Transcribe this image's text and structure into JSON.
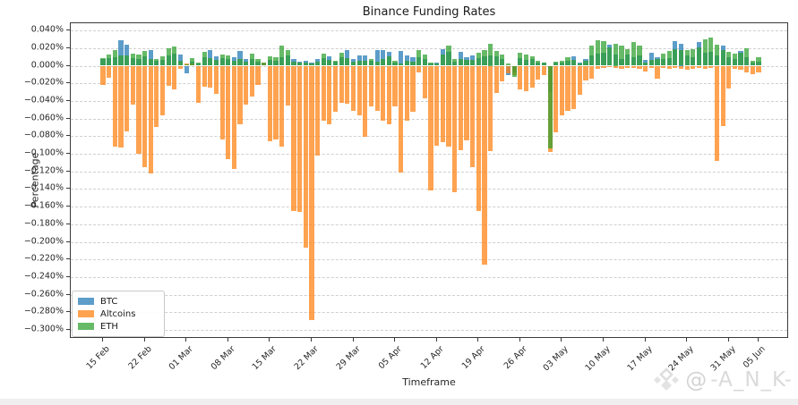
{
  "chart_data": {
    "type": "bar",
    "title": "Binance Funding Rates",
    "xlabel": "Timeframe",
    "ylabel": "Percentage",
    "ylim": [
      -0.3,
      0.04
    ],
    "ytick_step": 0.02,
    "grid": "dashed horizontal",
    "legend_position": "lower left",
    "bar_style": "overlapping, semi-transparent, per-day",
    "xtick_labels": [
      "15 Feb",
      "22 Feb",
      "01 Mar",
      "08 Mar",
      "15 Mar",
      "22 Mar",
      "29 Mar",
      "05 Apr",
      "12 Apr",
      "19 Apr",
      "26 Apr",
      "03 May",
      "10 May",
      "17 May",
      "24 May",
      "31 May",
      "05 Jun"
    ],
    "xtick_day_index": [
      0,
      7,
      14,
      21,
      28,
      35,
      42,
      49,
      56,
      63,
      70,
      77,
      84,
      91,
      98,
      105,
      110
    ],
    "x_range_days": 111,
    "series": [
      {
        "name": "BTC",
        "color": "#1f77b4",
        "values": [
          0.008,
          0.009,
          0.01,
          0.029,
          0.024,
          0.009,
          0.008,
          0.011,
          0.018,
          0.006,
          0.007,
          0.012,
          0.014,
          0.013,
          -0.009,
          0.005,
          0.003,
          0.01,
          0.018,
          0.011,
          0.009,
          0.008,
          0.01,
          0.017,
          0.008,
          0.008,
          0.005,
          0.003,
          0.007,
          0.006,
          0.01,
          0.012,
          0.008,
          0.005,
          0.006,
          0.004,
          0.008,
          0.009,
          0.011,
          0.005,
          0.01,
          0.018,
          0.008,
          0.012,
          0.012,
          0.006,
          0.018,
          0.018,
          0.016,
          0.004,
          0.017,
          0.012,
          0.01,
          0.01,
          0.008,
          0.003,
          0.004,
          0.019,
          0.016,
          0.005,
          0.016,
          0.01,
          0.012,
          0.009,
          0.011,
          0.012,
          0.011,
          0.008,
          -0.011,
          -0.008,
          0.009,
          0.007,
          0.008,
          0.004,
          0.004,
          -0.03,
          0.004,
          0.004,
          0.006,
          0.011,
          0.004,
          0.008,
          0.012,
          0.014,
          0.015,
          0.024,
          0.013,
          0.008,
          0.013,
          0.01,
          0.012,
          0.007,
          0.015,
          0.01,
          0.008,
          0.009,
          0.028,
          0.025,
          0.012,
          0.01,
          0.027,
          0.015,
          0.016,
          0.012,
          0.023,
          0.01,
          0.008,
          0.017,
          0.01,
          0.004,
          0.005
        ]
      },
      {
        "name": "Altcoins",
        "color": "#ff7f0e",
        "values": [
          -0.022,
          -0.014,
          -0.092,
          -0.093,
          -0.075,
          -0.044,
          -0.1,
          -0.115,
          -0.122,
          -0.07,
          -0.056,
          -0.023,
          -0.027,
          -0.004,
          0.003,
          0.003,
          -0.042,
          -0.024,
          -0.025,
          -0.032,
          -0.084,
          -0.106,
          -0.117,
          -0.066,
          -0.044,
          -0.035,
          -0.022,
          0.004,
          -0.086,
          -0.084,
          -0.092,
          -0.045,
          -0.165,
          -0.166,
          -0.207,
          -0.289,
          -0.102,
          -0.062,
          -0.067,
          -0.052,
          -0.042,
          -0.043,
          -0.051,
          -0.056,
          -0.081,
          -0.046,
          -0.051,
          -0.062,
          -0.066,
          -0.046,
          -0.121,
          -0.062,
          -0.052,
          -0.008,
          -0.037,
          -0.142,
          -0.091,
          -0.087,
          -0.092,
          -0.144,
          -0.096,
          -0.085,
          -0.115,
          -0.165,
          -0.226,
          -0.097,
          -0.031,
          -0.018,
          -0.009,
          -0.011,
          -0.027,
          -0.029,
          -0.025,
          -0.016,
          -0.011,
          -0.098,
          -0.076,
          -0.056,
          -0.051,
          -0.049,
          -0.033,
          -0.017,
          -0.015,
          -0.004,
          -0.003,
          -0.002,
          -0.003,
          -0.004,
          -0.003,
          -0.003,
          -0.004,
          -0.007,
          -0.003,
          -0.015,
          -0.003,
          -0.004,
          -0.003,
          -0.004,
          -0.005,
          -0.004,
          -0.003,
          -0.004,
          -0.003,
          -0.108,
          -0.069,
          -0.026,
          -0.004,
          -0.005,
          -0.008,
          -0.01,
          -0.008
        ]
      },
      {
        "name": "ETH",
        "color": "#2ca02c",
        "values": [
          0.009,
          0.013,
          0.018,
          0.012,
          0.012,
          0.014,
          0.013,
          0.017,
          0.008,
          0.008,
          0.011,
          0.02,
          0.022,
          0.006,
          0.002,
          0.009,
          0.004,
          0.016,
          0.009,
          0.007,
          0.013,
          0.012,
          0.006,
          0.008,
          0.005,
          0.014,
          0.008,
          0.004,
          0.011,
          0.01,
          0.023,
          0.018,
          0.005,
          0.004,
          0.004,
          0.003,
          0.005,
          0.014,
          0.007,
          0.006,
          0.015,
          0.009,
          0.005,
          0.006,
          0.006,
          0.008,
          0.005,
          0.008,
          0.011,
          0.006,
          0.003,
          0.006,
          0.005,
          0.018,
          0.013,
          0.004,
          0.003,
          0.013,
          0.023,
          0.008,
          0.008,
          0.007,
          0.007,
          0.015,
          0.018,
          0.025,
          0.017,
          0.013,
          0.003,
          -0.013,
          0.015,
          0.013,
          0.011,
          0.006,
          0.004,
          -0.094,
          0.005,
          0.006,
          0.01,
          0.007,
          0.003,
          0.006,
          0.023,
          0.029,
          0.028,
          0.021,
          0.025,
          0.023,
          0.019,
          0.027,
          0.023,
          0.004,
          0.007,
          0.008,
          0.014,
          0.017,
          0.019,
          0.018,
          0.018,
          0.019,
          0.021,
          0.03,
          0.032,
          0.024,
          0.018,
          0.016,
          0.014,
          0.015,
          0.02,
          0.006,
          0.01
        ]
      }
    ]
  },
  "legend": {
    "items": [
      {
        "label": "BTC"
      },
      {
        "label": "Altcoins"
      },
      {
        "label": "ETH"
      }
    ]
  },
  "watermark": {
    "at_symbol": "@",
    "text": "-A_N_K-"
  },
  "style": {
    "bar_alpha": 0.72,
    "grid_color": "#cfcfcf",
    "axis_color": "#3a3a3a",
    "watermark_color": "#dadada"
  }
}
